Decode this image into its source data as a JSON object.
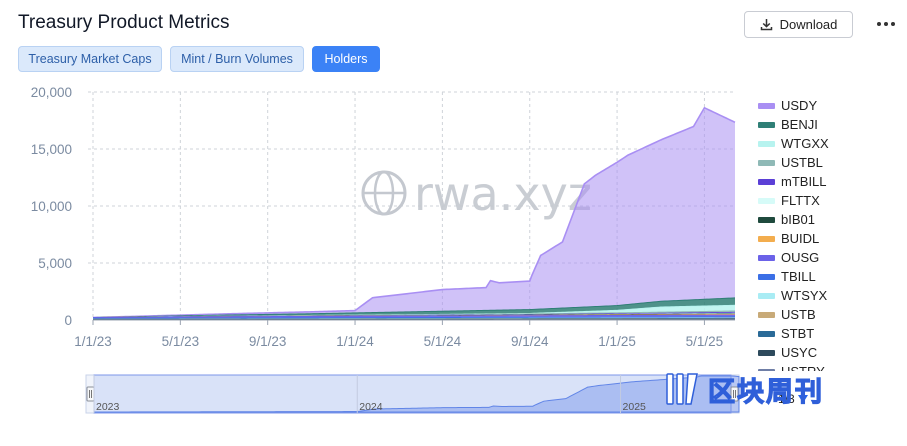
{
  "header": {
    "title": "Treasury Product Metrics",
    "download_label": "Download"
  },
  "tabs": [
    {
      "label": "Treasury Market Caps",
      "active": false
    },
    {
      "label": "Mint / Burn Volumes",
      "active": false
    },
    {
      "label": "Holders",
      "active": true
    }
  ],
  "watermark": "rwa.xyz",
  "logo_text": "区块周刊",
  "legend_page": "1/3",
  "colors": {
    "accent": "#3b82f6",
    "usdy": "#a98ff3",
    "benji": "#2f7f76",
    "wtgxx": "#b7f3ef"
  },
  "chart_data": {
    "type": "area",
    "title": "",
    "xlabel": "",
    "ylabel": "",
    "ylim": [
      0,
      20000
    ],
    "yticks": [
      0,
      5000,
      10000,
      15000,
      20000
    ],
    "ytick_labels": [
      "0",
      "5,000",
      "10,000",
      "15,000",
      "20,000"
    ],
    "xtick_labels": [
      "1/1/23",
      "5/1/23",
      "9/1/23",
      "1/1/24",
      "5/1/24",
      "9/1/24",
      "1/1/25",
      "5/1/25"
    ],
    "xlim_months": [
      0,
      29.4
    ],
    "grid": true,
    "legend_position": "right",
    "series": [
      {
        "name": "USDY",
        "color": "#a98ff3",
        "x_months": [
          0,
          12,
          12.8,
          16,
          18,
          18.2,
          18.6,
          20,
          20.1,
          20.5,
          21.5,
          22.5,
          23,
          24.5,
          25.5,
          27.5,
          28,
          29.4
        ],
        "values": [
          0,
          200,
          1300,
          1900,
          2000,
          2600,
          2400,
          2500,
          3000,
          4700,
          5800,
          10800,
          11500,
          13100,
          13800,
          15200,
          16800,
          15400
        ]
      },
      {
        "name": "BENJI",
        "color": "#2f7f76",
        "x_months": [
          0,
          10,
          16,
          20,
          24,
          29.4
        ],
        "values": [
          0,
          150,
          280,
          340,
          420,
          650
        ]
      },
      {
        "name": "WTGXX",
        "color": "#b7f3ef",
        "x_months": [
          0,
          20,
          24,
          26,
          29.4
        ],
        "values": [
          0,
          40,
          220,
          450,
          500
        ]
      },
      {
        "name": "USTBL",
        "color": "#8fb9b6",
        "x_months": [
          0,
          16,
          29.4
        ],
        "values": [
          0,
          40,
          120
        ]
      },
      {
        "name": "mTBILL",
        "color": "#5b3fd6",
        "x_months": [
          0,
          20,
          29.4
        ],
        "values": [
          0,
          30,
          80
        ]
      },
      {
        "name": "FLTTX",
        "color": "#d6fbf8",
        "x_months": [
          0,
          24,
          29.4
        ],
        "values": [
          0,
          20,
          60
        ]
      },
      {
        "name": "bIB01",
        "color": "#1f4a3d",
        "x_months": [
          0,
          29.4
        ],
        "values": [
          0,
          40
        ]
      },
      {
        "name": "BUIDL",
        "color": "#f3ad4e",
        "x_months": [
          0,
          16,
          29.4
        ],
        "values": [
          0,
          10,
          60
        ]
      },
      {
        "name": "OUSG",
        "color": "#6b62e8",
        "x_months": [
          0,
          6,
          29.4
        ],
        "values": [
          80,
          120,
          150
        ]
      },
      {
        "name": "TBILL",
        "color": "#3b6fe6",
        "x_months": [
          0,
          29.4
        ],
        "values": [
          60,
          100
        ]
      },
      {
        "name": "WTSYX",
        "color": "#a9ecf4",
        "x_months": [
          0,
          29.4
        ],
        "values": [
          20,
          40
        ]
      },
      {
        "name": "USTB",
        "color": "#c8aa78",
        "x_months": [
          0,
          29.4
        ],
        "values": [
          0,
          30
        ]
      },
      {
        "name": "STBT",
        "color": "#2a6a97",
        "x_months": [
          0,
          29.4
        ],
        "values": [
          40,
          60
        ]
      },
      {
        "name": "USYC",
        "color": "#2d4a5c",
        "x_months": [
          0,
          29.4
        ],
        "values": [
          10,
          30
        ]
      },
      {
        "name": "USTRY",
        "color": "#6f7ea6",
        "x_months": [
          0,
          29.4
        ],
        "values": [
          10,
          20
        ]
      }
    ],
    "navigator": {
      "labels": [
        "2023",
        "2024",
        "2025"
      ]
    }
  }
}
